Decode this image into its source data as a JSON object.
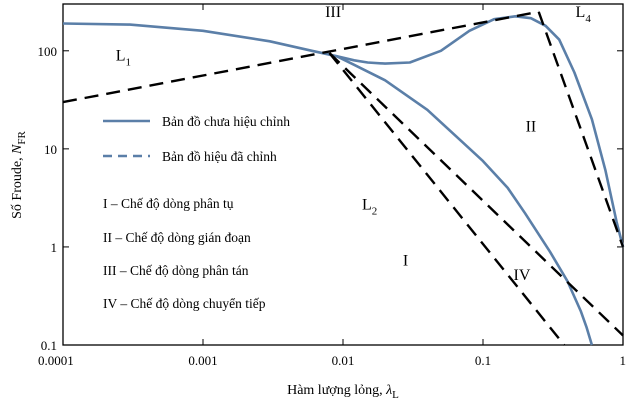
{
  "chart_data": {
    "type": "line",
    "xlabel_prefix": "Hàm lượng lỏng, ",
    "xlabel_symbol": "λ",
    "xlabel_sub": "L",
    "ylabel_prefix": "Số Froude, ",
    "ylabel_symbol": "N",
    "ylabel_sub": "FR",
    "xscale": "log",
    "yscale": "log",
    "xlim": [
      0.0001,
      1
    ],
    "ylim": [
      0.1,
      300
    ],
    "grid": false,
    "x_ticks": [
      {
        "value": 0.0001,
        "label": "0.0001"
      },
      {
        "value": 0.001,
        "label": "0.001"
      },
      {
        "value": 0.01,
        "label": "0.01"
      },
      {
        "value": 0.1,
        "label": "0.1"
      },
      {
        "value": 1,
        "label": "1"
      }
    ],
    "y_ticks": [
      {
        "value": 0.1,
        "label": "0.1"
      },
      {
        "value": 1,
        "label": "1"
      },
      {
        "value": 10,
        "label": "10"
      },
      {
        "value": 100,
        "label": "100"
      }
    ],
    "series": [
      {
        "name": "Bản đồ chưa hiệu chỉnh",
        "style": "solid",
        "color": "#5b7fa8",
        "segments": [
          [
            [
              0.0001,
              190
            ],
            [
              0.0003,
              185
            ],
            [
              0.001,
              160
            ],
            [
              0.003,
              125
            ],
            [
              0.006,
              100
            ],
            [
              0.009,
              88
            ],
            [
              0.012,
              80
            ],
            [
              0.015,
              76
            ],
            [
              0.02,
              74
            ],
            [
              0.03,
              76
            ],
            [
              0.05,
              100
            ],
            [
              0.08,
              160
            ],
            [
              0.12,
              210
            ],
            [
              0.17,
              225
            ],
            [
              0.22,
              215
            ],
            [
              0.28,
              180
            ],
            [
              0.35,
              130
            ],
            [
              0.45,
              60
            ],
            [
              0.6,
              20
            ],
            [
              0.75,
              6
            ],
            [
              0.9,
              1.8
            ],
            [
              1.0,
              1.0
            ]
          ],
          [
            [
              0.009,
              88
            ],
            [
              0.012,
              72
            ],
            [
              0.02,
              50
            ],
            [
              0.04,
              25
            ],
            [
              0.07,
              12
            ],
            [
              0.1,
              7.5
            ],
            [
              0.15,
              4
            ],
            [
              0.2,
              2.2
            ],
            [
              0.3,
              0.9
            ],
            [
              0.4,
              0.45
            ],
            [
              0.5,
              0.22
            ],
            [
              0.55,
              0.15
            ],
            [
              0.6,
              0.1
            ]
          ]
        ]
      },
      {
        "name": "Bản đồ hiệu đã chỉnh",
        "style": "dashed",
        "color": "#000000",
        "segments": [
          [
            [
              0.0001,
              30
            ],
            [
              0.25,
              250
            ]
          ],
          [
            [
              0.008,
              95
            ],
            [
              0.38,
              0.1
            ]
          ],
          [
            [
              0.008,
              95
            ],
            [
              1.0,
              0.125
            ]
          ],
          [
            [
              0.25,
              250
            ],
            [
              1.0,
              1.0
            ]
          ]
        ]
      }
    ],
    "annotations": [
      {
        "text": "L",
        "sub": "1",
        "x": 0.00027,
        "y": 80
      },
      {
        "text": "III",
        "x": 0.0085,
        "y": 220
      },
      {
        "text": "L",
        "sub": "4",
        "x": 0.52,
        "y": 220
      },
      {
        "text": "II",
        "x": 0.22,
        "y": 15
      },
      {
        "text": "L",
        "sub": "2",
        "x": 0.0155,
        "y": 2.4
      },
      {
        "text": "I",
        "x": 0.028,
        "y": 0.65
      },
      {
        "text": "IV",
        "x": 0.19,
        "y": 0.46
      }
    ],
    "legend": {
      "placement": "left",
      "entries": [
        {
          "label": "Bản đồ chưa hiệu chỉnh",
          "style": "solid",
          "color": "#5b7fa8"
        },
        {
          "label": "Bản đồ hiệu đã chỉnh",
          "style": "dashed",
          "color": "#5b7fa8"
        }
      ],
      "notes": [
        "I – Chế độ dòng phân tụ",
        "II – Chế độ dòng gián đoạn",
        "III – Chế độ dòng phân tán",
        "IV – Chế độ dòng chuyển tiếp"
      ]
    }
  }
}
